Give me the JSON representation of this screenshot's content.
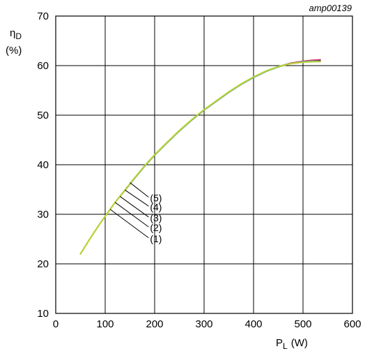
{
  "chart_data": {
    "type": "line",
    "figure_id": "amp00139",
    "xlabel": "P",
    "xlabel_sub": "L",
    "xlabel_unit": "(W)",
    "ylabel": "η",
    "ylabel_sub": "D",
    "ylabel_unit": "(%)",
    "xlim": [
      0,
      600
    ],
    "ylim": [
      10,
      70
    ],
    "xticks": [
      0,
      100,
      200,
      300,
      400,
      500,
      600
    ],
    "yticks": [
      10,
      20,
      30,
      40,
      50,
      60,
      70
    ],
    "grid": true,
    "series": [
      {
        "name": "(1)",
        "color": "#000000",
        "x": [
          50,
          60,
          70,
          80,
          90,
          100,
          120,
          140,
          160,
          180,
          200,
          225,
          250,
          275,
          300,
          325,
          350,
          375,
          400,
          425,
          450,
          475,
          500,
          520,
          535
        ],
        "y": [
          22,
          23.6,
          25.2,
          26.7,
          28.2,
          29.6,
          32.4,
          34.8,
          37.3,
          39.7,
          41.9,
          44.4,
          46.8,
          49.0,
          51.0,
          52.8,
          54.6,
          56.2,
          57.6,
          58.8,
          59.8,
          60.5,
          60.9,
          61.1,
          61.1
        ]
      },
      {
        "name": "(2)",
        "color": "#e0306f",
        "x": [
          50,
          60,
          70,
          80,
          90,
          100,
          120,
          140,
          160,
          180,
          200,
          225,
          250,
          275,
          300,
          325,
          350,
          375,
          400,
          425,
          450,
          475,
          500,
          520,
          535
        ],
        "y": [
          22,
          23.6,
          25.2,
          26.7,
          28.2,
          29.6,
          32.4,
          34.8,
          37.3,
          39.7,
          41.9,
          44.4,
          46.8,
          49.0,
          51.0,
          52.8,
          54.6,
          56.2,
          57.6,
          58.8,
          59.8,
          60.5,
          60.9,
          61.1,
          61.2
        ]
      },
      {
        "name": "(3)",
        "color": "#1f9ad6",
        "x": [
          50,
          60,
          70,
          80,
          90,
          100,
          120,
          140,
          160,
          180,
          200,
          225,
          250,
          275,
          300,
          325,
          350,
          375,
          400,
          425,
          450,
          475,
          500,
          520,
          535
        ],
        "y": [
          22,
          23.6,
          25.2,
          26.7,
          28.2,
          29.6,
          32.4,
          34.8,
          37.3,
          39.7,
          41.9,
          44.4,
          46.8,
          49.0,
          51.0,
          52.8,
          54.6,
          56.2,
          57.6,
          58.8,
          59.7,
          60.4,
          60.8,
          60.9,
          60.9
        ]
      },
      {
        "name": "(4)",
        "color": "#f2a01e",
        "x": [
          50,
          60,
          70,
          80,
          90,
          100,
          120,
          140,
          160,
          180,
          200,
          225,
          250,
          275,
          300,
          325,
          350,
          375,
          400,
          425,
          450,
          475,
          500,
          520,
          535
        ],
        "y": [
          22,
          23.6,
          25.2,
          26.7,
          28.2,
          29.6,
          32.4,
          34.9,
          37.4,
          39.8,
          42.0,
          44.5,
          46.9,
          49.1,
          51.1,
          52.9,
          54.7,
          56.3,
          57.7,
          58.9,
          59.8,
          60.4,
          60.7,
          60.8,
          60.8
        ]
      },
      {
        "name": "(5)",
        "color": "#b5d334",
        "x": [
          50,
          60,
          70,
          80,
          90,
          100,
          120,
          140,
          160,
          180,
          200,
          225,
          250,
          275,
          300,
          325,
          350,
          375,
          400,
          425,
          450,
          475,
          500,
          520,
          535
        ],
        "y": [
          22,
          23.6,
          25.2,
          26.7,
          28.2,
          29.6,
          32.4,
          34.9,
          37.4,
          39.8,
          42.0,
          44.5,
          46.9,
          49.1,
          51.1,
          52.9,
          54.7,
          56.3,
          57.7,
          58.9,
          59.8,
          60.4,
          60.7,
          60.8,
          60.8
        ]
      }
    ],
    "callouts": [
      {
        "label": "(5)",
        "color": "#b5d334",
        "x": 150,
        "y": 36.4,
        "text_x": 185,
        "text_y": 32.6
      },
      {
        "label": "(4)",
        "color": "#f2a01e",
        "x": 140,
        "y": 34.9,
        "text_x": 185,
        "text_y": 30.8
      },
      {
        "label": "(3)",
        "color": "#1f9ad6",
        "x": 130,
        "y": 33.6,
        "text_x": 185,
        "text_y": 28.6
      },
      {
        "label": "(2)",
        "color": "#e0306f",
        "x": 120,
        "y": 32.4,
        "text_x": 185,
        "text_y": 26.6
      },
      {
        "label": "(1)",
        "color": "#000000",
        "x": 110,
        "y": 31.0,
        "text_x": 185,
        "text_y": 24.4
      }
    ]
  }
}
